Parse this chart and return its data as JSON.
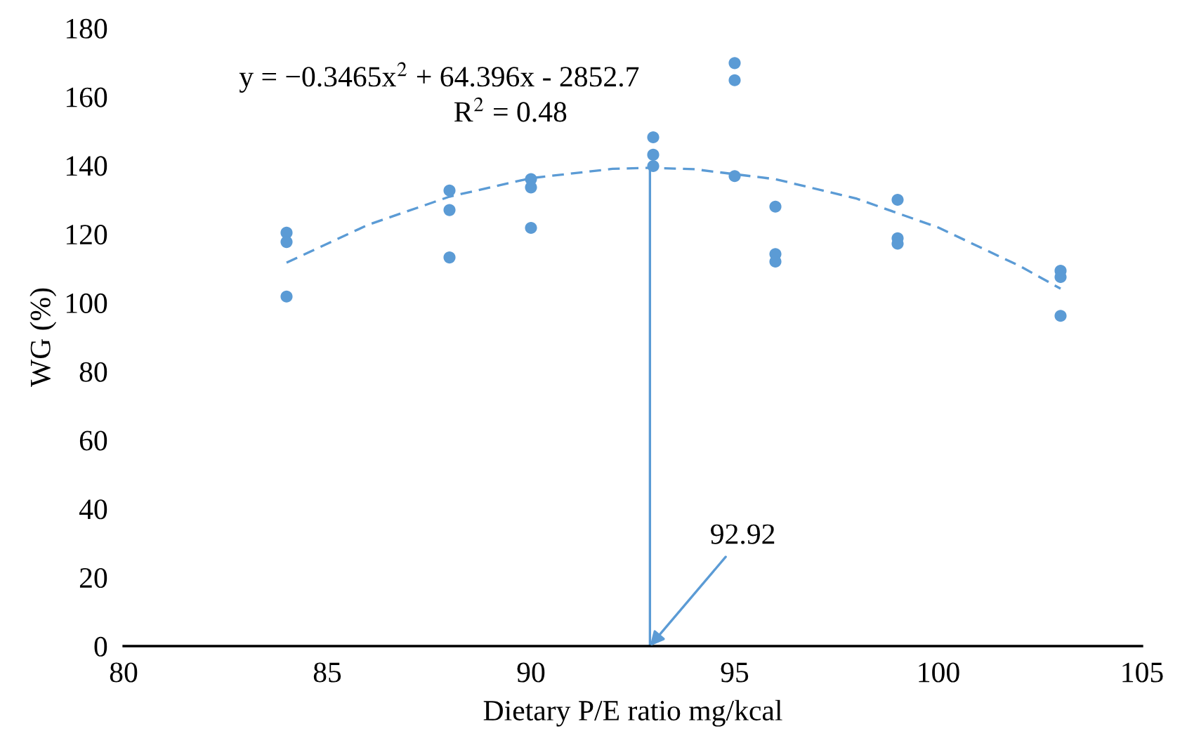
{
  "chart_data": {
    "type": "scatter",
    "xlabel": "Dietary P/E ratio mg/kcal",
    "ylabel": "WG (%)",
    "xlim": [
      80,
      105
    ],
    "xticks": [
      80,
      85,
      90,
      95,
      100,
      105
    ],
    "ylim": [
      0,
      180
    ],
    "yticks": [
      0,
      20,
      40,
      60,
      80,
      100,
      120,
      140,
      160,
      180
    ],
    "grid": false,
    "marker": "circle",
    "series": [
      {
        "color": "#5b9bd5",
        "x": [
          84,
          84,
          84,
          88,
          88,
          88,
          90,
          90,
          90,
          93,
          93,
          93,
          95,
          95,
          95,
          96,
          96,
          96,
          99,
          99,
          99,
          103,
          103,
          103
        ],
        "values": [
          120.4,
          117.7,
          101.8,
          132.7,
          127,
          113.2,
          136,
          133.6,
          121.8,
          148.2,
          143.1,
          139.8,
          169.8,
          164.8,
          136.9,
          128,
          114.2,
          112,
          130,
          118.8,
          117.2,
          109.3,
          107.5,
          96.2
        ]
      },
      {
        "type": "line",
        "marker": "none",
        "line_style": "dashed",
        "color": "#5b9bd5",
        "x": [
          84,
          86,
          88,
          90,
          92,
          92.92,
          94,
          96,
          98,
          100,
          102,
          103
        ],
        "values": [
          111.7,
          122.7,
          130.9,
          136.3,
          139.0,
          139.3,
          138.9,
          136.0,
          130.3,
          121.9,
          110.7,
          104.1
        ]
      },
      {
        "type": "line",
        "marker": "none",
        "line_style": "solid",
        "color": "#5b9bd5",
        "x": [
          92.92,
          92.92
        ],
        "values": [
          0,
          139.3
        ]
      }
    ],
    "annotations": [
      "y = −0.3465x$^{2}$ + 64.396x - 2852.7",
      "R$^{2}$ = 0.48",
      {
        "text": "92.92",
        "x": 92.92,
        "y": 0
      }
    ]
  }
}
